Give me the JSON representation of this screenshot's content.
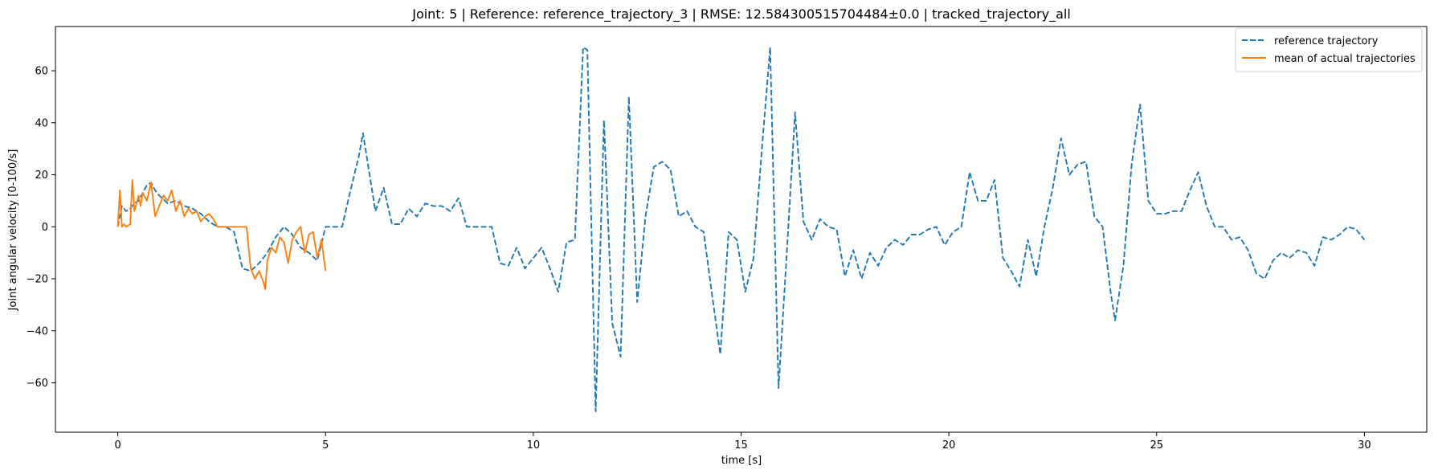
{
  "chart_data": {
    "type": "line",
    "title": "Joint: 5 | Reference: reference_trajectory_3 | RMSE: 12.584300515704484±0.0 | tracked_trajectory_all",
    "xlabel": "time [s]",
    "ylabel": "Joint angular velocity [0-100/s]",
    "xlim": [
      -1.5,
      31.5
    ],
    "ylim": [
      -79,
      77
    ],
    "xticks": [
      0,
      5,
      10,
      15,
      20,
      25,
      30
    ],
    "yticks": [
      -60,
      -40,
      -20,
      0,
      20,
      40,
      60
    ],
    "grid": false,
    "legend": "top-right",
    "series": [
      {
        "name": "reference trajectory",
        "color": "#1f77b4",
        "style": "dashed",
        "x": [
          0,
          0.1,
          0.2,
          0.3,
          0.4,
          0.5,
          0.6,
          0.7,
          0.8,
          0.9,
          1.0,
          1.2,
          1.4,
          1.6,
          1.8,
          2.0,
          2.2,
          2.4,
          2.6,
          2.8,
          3.0,
          3.2,
          3.4,
          3.6,
          3.8,
          4.0,
          4.2,
          4.4,
          4.6,
          4.8,
          5.0,
          5.2,
          5.4,
          5.6,
          5.8,
          5.9,
          6.0,
          6.2,
          6.4,
          6.6,
          6.8,
          7.0,
          7.2,
          7.4,
          7.6,
          7.8,
          8.0,
          8.2,
          8.4,
          8.6,
          8.8,
          9.0,
          9.2,
          9.4,
          9.6,
          9.8,
          10.0,
          10.2,
          10.4,
          10.6,
          10.8,
          11.0,
          11.2,
          11.3,
          11.5,
          11.7,
          11.9,
          12.1,
          12.3,
          12.5,
          12.7,
          12.9,
          13.1,
          13.3,
          13.5,
          13.7,
          13.9,
          14.1,
          14.3,
          14.5,
          14.7,
          14.9,
          15.1,
          15.3,
          15.5,
          15.7,
          15.9,
          16.1,
          16.3,
          16.5,
          16.7,
          16.9,
          17.1,
          17.3,
          17.5,
          17.7,
          17.9,
          18.1,
          18.3,
          18.5,
          18.7,
          18.9,
          19.1,
          19.3,
          19.5,
          19.7,
          19.9,
          20.1,
          20.3,
          20.5,
          20.7,
          20.9,
          21.1,
          21.3,
          21.5,
          21.7,
          21.9,
          22.1,
          22.3,
          22.5,
          22.7,
          22.9,
          23.1,
          23.3,
          23.5,
          23.7,
          23.9,
          24.0,
          24.2,
          24.4,
          24.6,
          24.8,
          25.0,
          25.2,
          25.4,
          25.6,
          25.8,
          26.0,
          26.2,
          26.4,
          26.6,
          26.8,
          27.0,
          27.2,
          27.4,
          27.6,
          27.8,
          28.0,
          28.2,
          28.4,
          28.6,
          28.8,
          29.0,
          29.2,
          29.4,
          29.6,
          29.8,
          30.0
        ],
        "y": [
          0,
          8,
          6,
          7,
          9,
          10,
          13,
          16,
          17,
          14,
          12,
          9,
          10,
          8,
          7,
          5,
          2,
          0,
          0,
          -2,
          -16,
          -17,
          -14,
          -10,
          -4,
          0,
          -3,
          -8,
          -10,
          -13,
          0,
          0,
          0,
          14,
          27,
          36,
          26,
          6,
          15,
          1,
          1,
          7,
          4,
          9,
          8,
          8,
          6,
          11,
          0,
          0,
          0,
          0,
          -14,
          -15,
          -8,
          -16,
          -12,
          -8,
          -16,
          -25,
          -6,
          -5,
          69,
          68,
          -71,
          41,
          -37,
          -50,
          50,
          -29,
          4,
          23,
          25,
          22,
          4,
          6,
          0,
          -2,
          -26,
          -49,
          -2,
          -5,
          -25,
          -12,
          30,
          69,
          -62,
          -10,
          44,
          2,
          -5,
          3,
          0,
          -1,
          -19,
          -9,
          -20,
          -10,
          -15,
          -8,
          -5,
          -7,
          -3,
          -3,
          -1,
          0,
          -7,
          -2,
          0,
          21,
          10,
          10,
          18,
          -12,
          -17,
          -23,
          -5,
          -19,
          0,
          15,
          34,
          20,
          24,
          25,
          4,
          0,
          -26,
          -36,
          -15,
          24,
          47,
          10,
          5,
          5,
          6,
          6,
          14,
          21,
          8,
          0,
          0,
          -5,
          -4,
          -9,
          -18,
          -20,
          -13,
          -10,
          -12,
          -9,
          -10,
          -15,
          -4,
          -5,
          -3,
          0,
          -1,
          -5
        ]
      },
      {
        "name": "mean of actual trajectories",
        "color": "#ff7f0e",
        "style": "solid",
        "x": [
          0,
          0.05,
          0.1,
          0.15,
          0.2,
          0.3,
          0.35,
          0.4,
          0.5,
          0.55,
          0.6,
          0.7,
          0.8,
          0.9,
          1.0,
          1.1,
          1.2,
          1.3,
          1.4,
          1.5,
          1.6,
          1.7,
          1.8,
          1.9,
          2.0,
          2.1,
          2.2,
          2.3,
          2.4,
          2.5,
          2.6,
          2.8,
          3.0,
          3.1,
          3.2,
          3.3,
          3.4,
          3.5,
          3.55,
          3.6,
          3.7,
          3.8,
          3.9,
          4.0,
          4.1,
          4.2,
          4.3,
          4.4,
          4.5,
          4.6,
          4.7,
          4.8,
          4.9,
          5.0
        ],
        "y": [
          0,
          14,
          0,
          1,
          0,
          1,
          18,
          6,
          12,
          8,
          13,
          10,
          17,
          4,
          8,
          12,
          10,
          14,
          6,
          10,
          4,
          7,
          5,
          6,
          2,
          4,
          5,
          3,
          0,
          0,
          0,
          0,
          0,
          0,
          -16,
          -20,
          -17,
          -21,
          -24,
          -13,
          -8,
          -10,
          -4,
          -6,
          -14,
          -5,
          -2,
          0,
          -10,
          -3,
          -2,
          -12,
          -5,
          -17
        ]
      }
    ]
  }
}
